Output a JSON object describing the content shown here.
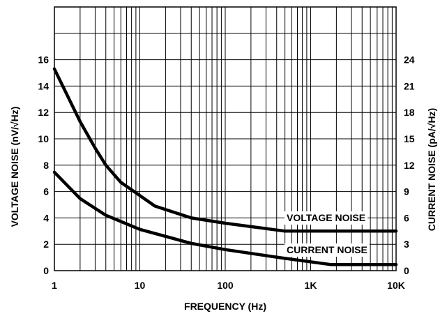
{
  "chart_data": {
    "type": "line",
    "xscale": "log",
    "x_ticks": [
      "1",
      "10",
      "100",
      "1K",
      "10K"
    ],
    "xlabel": "FREQUENCY (Hz)",
    "ylabel_left": "VOLTAGE NOISE (nV/√Hz)",
    "ylabel_right": "CURRENT NOISE (pA/√Hz)",
    "y_left_ticks": [
      "0",
      "2",
      "4",
      "6",
      "8",
      "10",
      "12",
      "14",
      "16"
    ],
    "y_right_ticks": [
      "0",
      "3",
      "6",
      "9",
      "12",
      "15",
      "18",
      "21",
      "24"
    ],
    "xlim": [
      1,
      10000
    ],
    "ylim_left": [
      0,
      20
    ],
    "ylim_right": [
      0,
      30
    ],
    "grid": true,
    "series": [
      {
        "name": "VOLTAGE NOISE",
        "axis": "left",
        "x": [
          1,
          2,
          3,
          4,
          6,
          10,
          15,
          40,
          100,
          500,
          10000
        ],
        "y": [
          15.3,
          11.3,
          9.3,
          8,
          6.7,
          5.7,
          4.9,
          4.0,
          3.6,
          3.0,
          3.0
        ]
      },
      {
        "name": "CURRENT NOISE",
        "axis": "right",
        "x": [
          1,
          2,
          4,
          10,
          40,
          100,
          500,
          1700,
          10000
        ],
        "y": [
          11.2,
          8.2,
          6.3,
          4.7,
          3.1,
          2.4,
          1.4,
          0.7,
          0.7
        ]
      }
    ]
  }
}
